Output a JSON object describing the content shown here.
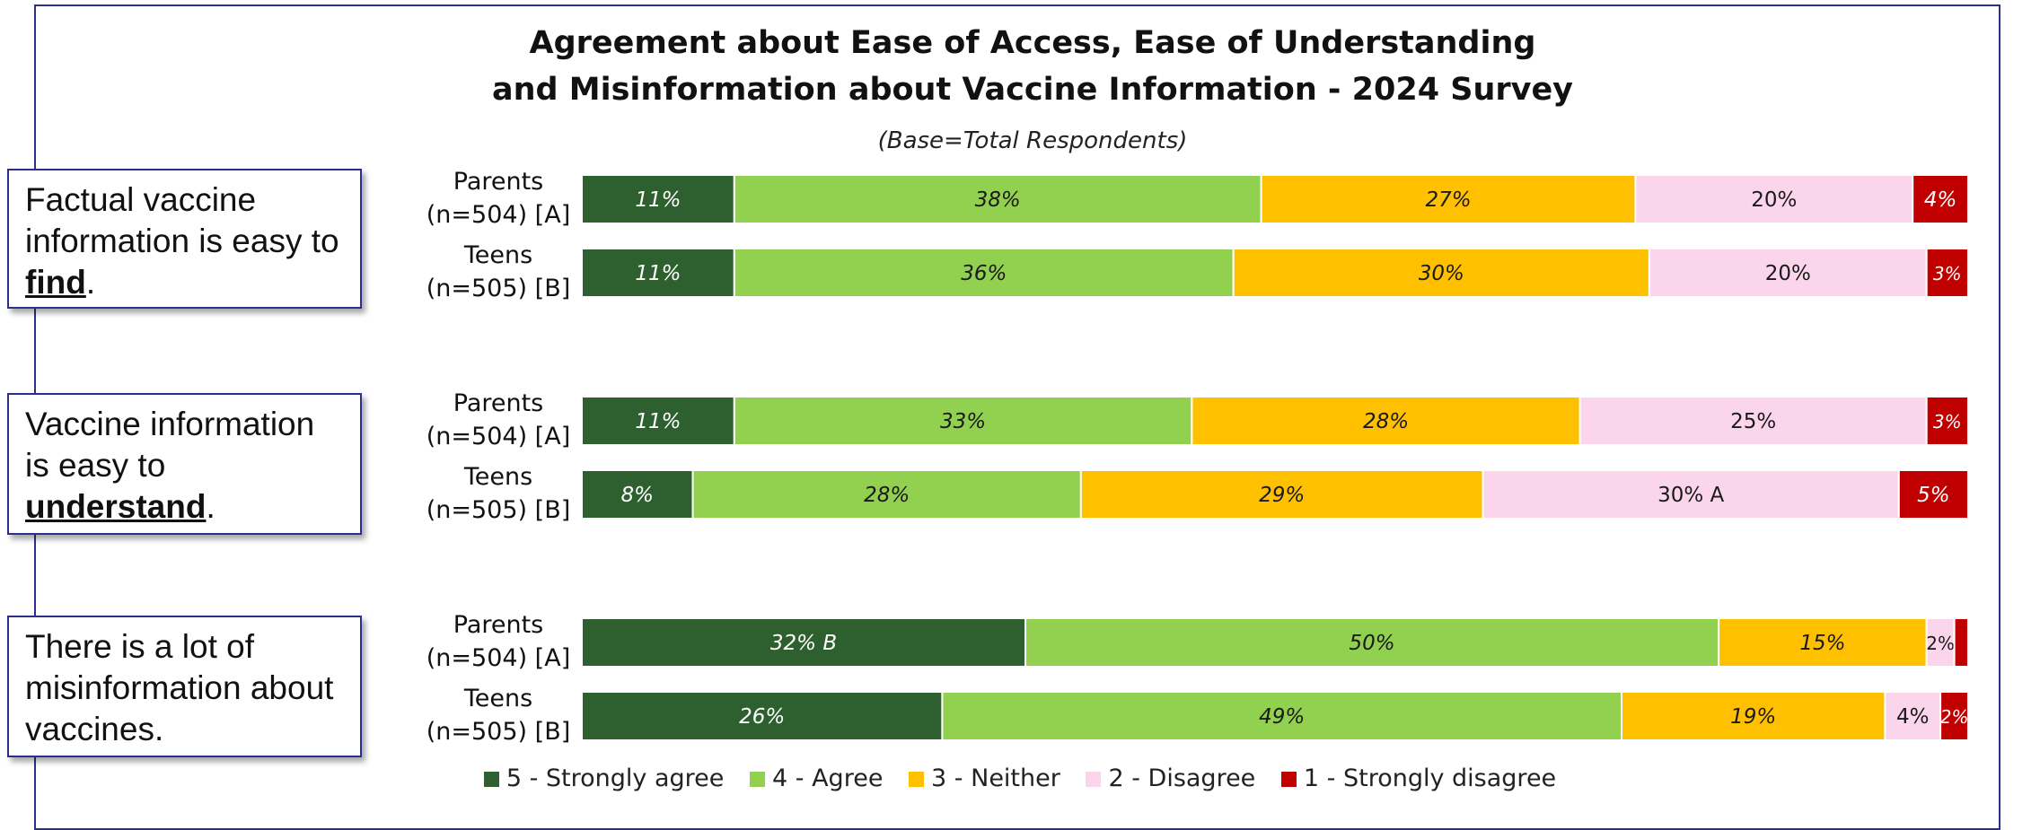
{
  "chart_data": {
    "type": "stacked-bar-horizontal",
    "title_lines": [
      "Agreement about Ease of Access, Ease of Understanding",
      "and Misinformation about Vaccine Information - 2024 Survey"
    ],
    "subtitle": "(Base=Total Respondents)",
    "xlim": [
      0,
      100
    ],
    "grid": false,
    "legend_position": "bottom",
    "series": [
      {
        "name": "5 - Strongly agree",
        "color": "#2d5f2f",
        "text_color": "#ffffff"
      },
      {
        "name": "4 - Agree",
        "color": "#92d050",
        "text_color": "#1a1a1a"
      },
      {
        "name": "3 - Neither",
        "color": "#ffc000",
        "text_color": "#1a1a1a"
      },
      {
        "name": "2 - Disagree",
        "color": "#fbd5ec",
        "text_color": "#1a1a1a"
      },
      {
        "name": "1 - Strongly disagree",
        "color": "#c00000",
        "text_color": "#ffffff"
      }
    ],
    "groups": [
      {
        "statement": {
          "before": "Factual vaccine information is easy to ",
          "keyword": "find",
          "after": "."
        },
        "rows": [
          {
            "label": [
              "Parents",
              "(n=504) [A]"
            ],
            "values": [
              11,
              38,
              27,
              20,
              4
            ],
            "labels": [
              "11%",
              "38%",
              "27%",
              "20%",
              "4%"
            ]
          },
          {
            "label": [
              "Teens",
              "(n=505) [B]"
            ],
            "values": [
              11,
              36,
              30,
              20,
              3
            ],
            "labels": [
              "11%",
              "36%",
              "30%",
              "20%",
              "3%"
            ]
          }
        ]
      },
      {
        "statement": {
          "before": "Vaccine information is easy to ",
          "keyword": "understand",
          "after": "."
        },
        "rows": [
          {
            "label": [
              "Parents",
              "(n=504) [A]"
            ],
            "values": [
              11,
              33,
              28,
              25,
              3
            ],
            "labels": [
              "11%",
              "33%",
              "28%",
              "25%",
              "3%"
            ]
          },
          {
            "label": [
              "Teens",
              "(n=505) [B]"
            ],
            "values": [
              8,
              28,
              29,
              30,
              5
            ],
            "labels": [
              "8%",
              "28%",
              "29%",
              "30% A",
              "5%"
            ]
          }
        ]
      },
      {
        "statement": {
          "before": "There is a lot of misinformation about vaccines.",
          "keyword": "",
          "after": ""
        },
        "rows": [
          {
            "label": [
              "Parents",
              "(n=504) [A]"
            ],
            "values": [
              32,
              50,
              15,
              2,
              1
            ],
            "labels": [
              "32% B",
              "50%",
              "15%",
              "2%",
              ""
            ]
          },
          {
            "label": [
              "Teens",
              "(n=505) [B]"
            ],
            "values": [
              26,
              49,
              19,
              4,
              2
            ],
            "labels": [
              "26%",
              "49%",
              "19%",
              "4%",
              "2%"
            ]
          }
        ]
      }
    ]
  }
}
